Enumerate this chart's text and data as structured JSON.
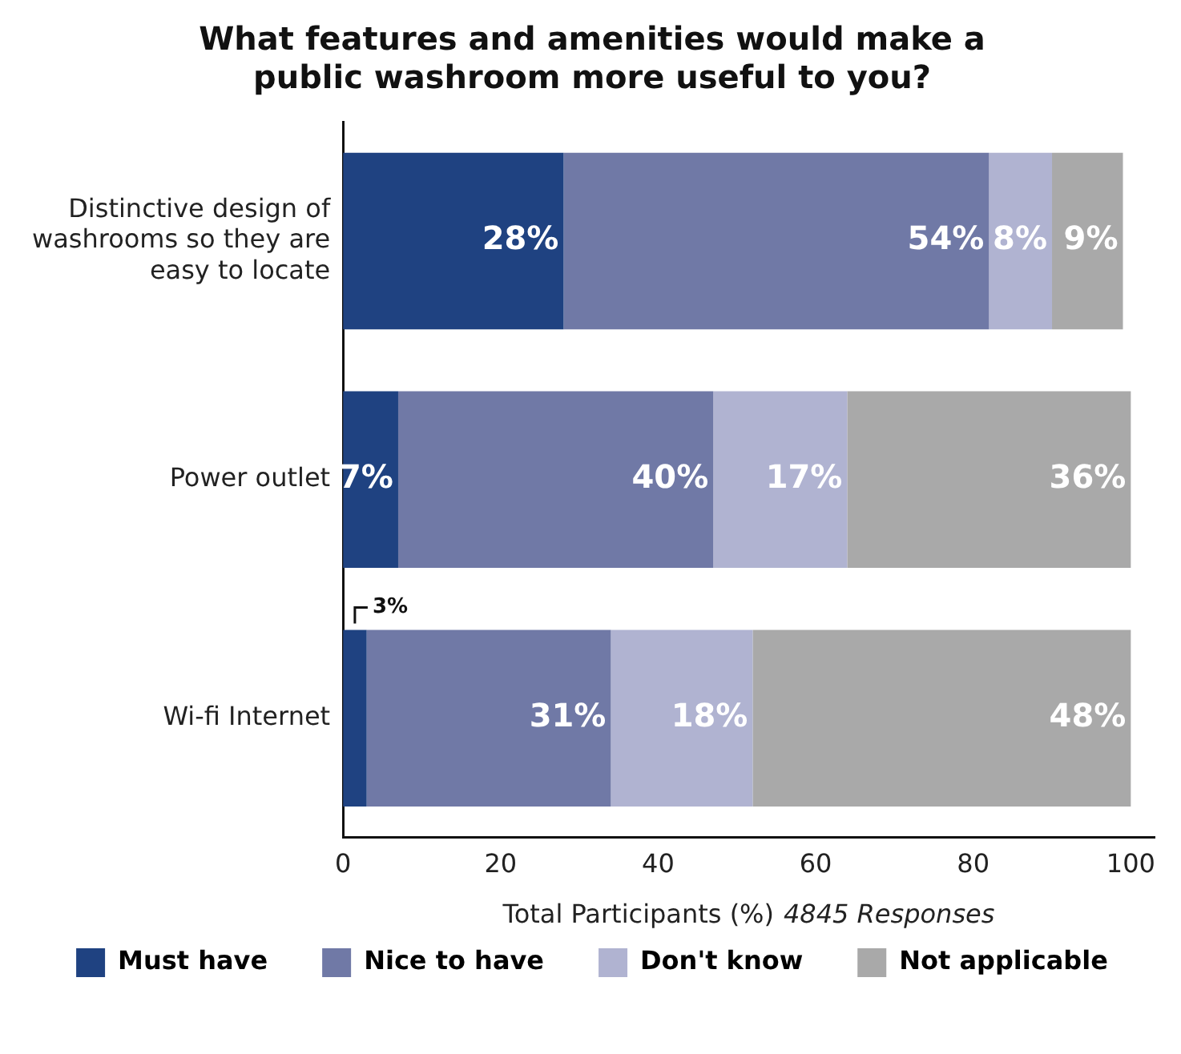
{
  "chart_data": {
    "type": "bar",
    "orientation": "horizontal",
    "stacked": true,
    "title": "What features and amenities would make a public washroom more useful to you?",
    "xlabel": "Total Participants (%)",
    "annotations": [
      "4845 Responses"
    ],
    "categories": [
      "Distinctive design of washrooms so they are easy to locate",
      "Power outlet",
      "Wi-fi Internet"
    ],
    "series": [
      {
        "name": "Must have",
        "color": "#1f4281",
        "values": [
          28,
          7,
          3
        ],
        "value_labels": [
          "28%",
          "7%",
          "3%"
        ]
      },
      {
        "name": "Nice to have",
        "color": "#7079a6",
        "values": [
          54,
          40,
          31
        ],
        "value_labels": [
          "54%",
          "40%",
          "31%"
        ]
      },
      {
        "name": "Don't know",
        "color": "#b0b3d1",
        "values": [
          8,
          17,
          18
        ],
        "value_labels": [
          "8%",
          "17%",
          "18%"
        ]
      },
      {
        "name": "Not applicable",
        "color": "#a9a9a9",
        "values": [
          9,
          36,
          48
        ],
        "value_labels": [
          "9%",
          "36%",
          "48%"
        ]
      }
    ],
    "xlim": [
      0,
      103
    ],
    "xticks": [
      0,
      20,
      40,
      60,
      80,
      100
    ],
    "grid": false,
    "legend": "bottom"
  }
}
